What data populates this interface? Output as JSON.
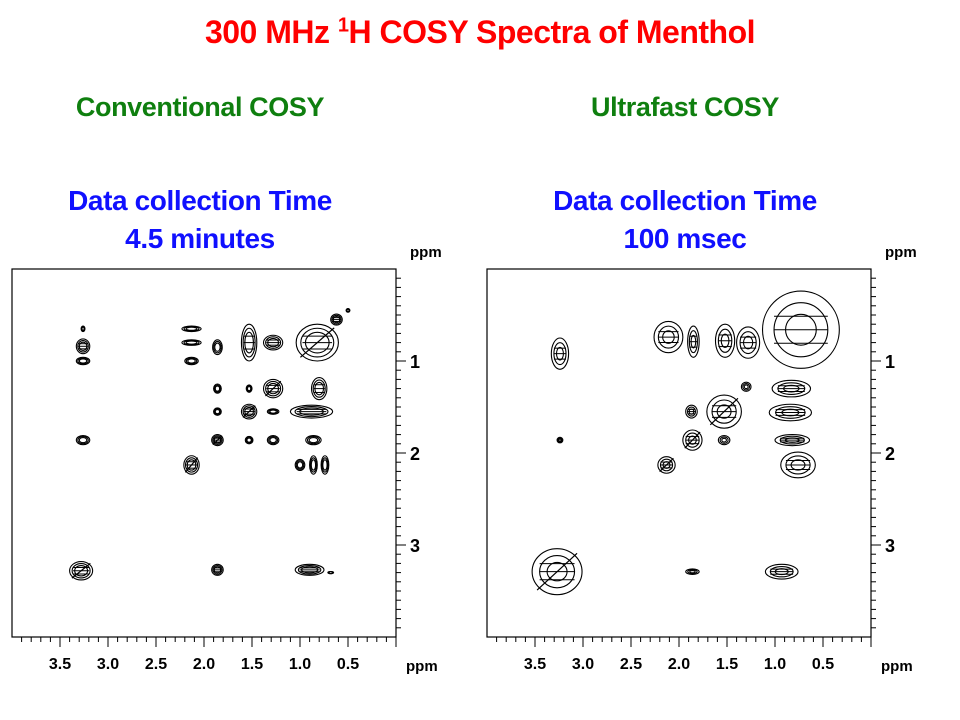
{
  "title": {
    "prefix": "300 MHz ",
    "sup": "1",
    "suffix": "H COSY Spectra of Menthol",
    "color": "#ff0000"
  },
  "panels": [
    {
      "heading": "Conventional COSY",
      "time_label": "Data collection Time",
      "time_value": "4.5 minutes"
    },
    {
      "heading": "Ultrafast COSY",
      "time_label": "Data collection Time",
      "time_value": "100 msec"
    }
  ],
  "colors": {
    "heading": "#0f7f0f",
    "subheading": "#1010ff",
    "contours": "#000000"
  },
  "chart_data": [
    {
      "type": "contour",
      "title": "Conventional COSY",
      "xlabel": "ppm",
      "ylabel": "ppm",
      "xlim": [
        4.0,
        0.0
      ],
      "ylim": [
        0.0,
        4.0
      ],
      "x_ticks": [
        "3.5",
        "3.0",
        "2.5",
        "2.0",
        "1.5",
        "1.0",
        "0.5"
      ],
      "y_ticks": [
        "1",
        "2",
        "3"
      ],
      "grid": false,
      "peaks": [
        [
          3.26,
          0.65,
          0.02,
          0.03
        ],
        [
          3.26,
          0.84,
          0.07,
          0.08
        ],
        [
          3.26,
          1.0,
          0.07,
          0.04
        ],
        [
          3.26,
          1.86,
          0.07,
          0.05
        ],
        [
          3.28,
          3.28,
          0.12,
          0.1
        ],
        [
          2.13,
          0.65,
          0.1,
          0.03
        ],
        [
          2.13,
          0.8,
          0.1,
          0.03
        ],
        [
          2.13,
          1.0,
          0.07,
          0.04
        ],
        [
          2.13,
          2.13,
          0.08,
          0.1
        ],
        [
          1.86,
          0.85,
          0.05,
          0.08
        ],
        [
          1.86,
          1.3,
          0.04,
          0.05
        ],
        [
          1.86,
          1.55,
          0.04,
          0.04
        ],
        [
          1.86,
          1.86,
          0.06,
          0.06
        ],
        [
          1.86,
          3.27,
          0.06,
          0.06
        ],
        [
          1.53,
          0.8,
          0.08,
          0.2
        ],
        [
          1.53,
          1.3,
          0.03,
          0.04
        ],
        [
          1.53,
          1.55,
          0.08,
          0.08
        ],
        [
          1.53,
          1.86,
          0.04,
          0.04
        ],
        [
          1.28,
          0.8,
          0.1,
          0.08
        ],
        [
          1.28,
          1.3,
          0.1,
          0.1
        ],
        [
          1.28,
          1.55,
          0.06,
          0.03
        ],
        [
          1.28,
          1.86,
          0.06,
          0.05
        ],
        [
          0.82,
          0.8,
          0.22,
          0.2
        ],
        [
          0.8,
          1.3,
          0.08,
          0.12
        ],
        [
          0.88,
          1.55,
          0.22,
          0.07
        ],
        [
          0.86,
          1.86,
          0.08,
          0.05
        ],
        [
          1.0,
          2.13,
          0.05,
          0.06
        ],
        [
          0.86,
          2.13,
          0.04,
          0.1
        ],
        [
          0.74,
          2.13,
          0.04,
          0.1
        ],
        [
          0.9,
          3.27,
          0.15,
          0.06
        ],
        [
          0.68,
          3.3,
          0.03,
          0.01
        ],
        [
          0.62,
          0.55,
          0.06,
          0.06
        ],
        [
          0.5,
          0.45,
          0.02,
          0.02
        ]
      ]
    },
    {
      "type": "contour",
      "title": "Ultrafast COSY",
      "xlabel": "ppm",
      "ylabel": "ppm",
      "xlim": [
        4.0,
        0.0
      ],
      "ylim": [
        0.0,
        4.0
      ],
      "x_ticks": [
        "3.5",
        "3.0",
        "2.5",
        "2.0",
        "1.5",
        "1.0",
        "0.5"
      ],
      "y_ticks": [
        "1",
        "2",
        "3"
      ],
      "grid": false,
      "peaks": [
        [
          3.24,
          0.92,
          0.09,
          0.17
        ],
        [
          3.24,
          1.86,
          0.03,
          0.03
        ],
        [
          3.27,
          3.29,
          0.26,
          0.25
        ],
        [
          2.11,
          0.74,
          0.15,
          0.17
        ],
        [
          1.85,
          0.79,
          0.06,
          0.17
        ],
        [
          1.52,
          0.78,
          0.1,
          0.18
        ],
        [
          1.28,
          0.8,
          0.12,
          0.17
        ],
        [
          0.73,
          0.66,
          0.4,
          0.42
        ],
        [
          1.3,
          1.28,
          0.05,
          0.05
        ],
        [
          0.83,
          1.3,
          0.2,
          0.09
        ],
        [
          1.53,
          1.55,
          0.18,
          0.18
        ],
        [
          1.87,
          1.55,
          0.06,
          0.07
        ],
        [
          0.84,
          1.56,
          0.22,
          0.09
        ],
        [
          1.86,
          1.86,
          0.1,
          0.11
        ],
        [
          1.53,
          1.86,
          0.06,
          0.05
        ],
        [
          0.82,
          1.86,
          0.18,
          0.06
        ],
        [
          2.13,
          2.13,
          0.09,
          0.09
        ],
        [
          0.76,
          2.13,
          0.18,
          0.14
        ],
        [
          1.86,
          3.29,
          0.07,
          0.03
        ],
        [
          0.93,
          3.29,
          0.17,
          0.08
        ]
      ]
    }
  ]
}
